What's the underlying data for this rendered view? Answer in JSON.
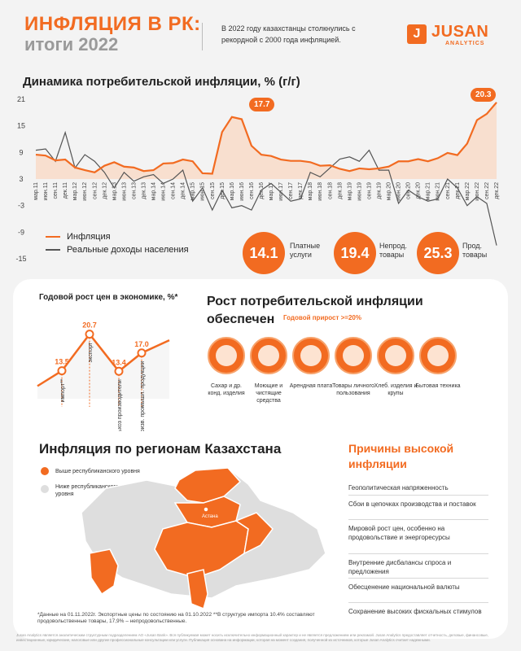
{
  "header": {
    "title_line1": "ИНФЛЯЦИЯ В РК:",
    "title_line2": "итоги 2022",
    "intro": "В 2022 году казахстанцы столкнулись с рекордной с 2000 года инфляцией.",
    "logo_text": "JUSAN",
    "logo_sub": "ANALYTICS",
    "logo_mark": "J"
  },
  "chart_data": {
    "type": "line",
    "title": "Динамика потребительской инфляции, % (г/г)",
    "yticks": [
      21,
      15,
      9,
      3,
      -3,
      -9,
      -15
    ],
    "ylim": [
      -15,
      21
    ],
    "xticks": [
      "мар.11",
      "июн.11",
      "сен.11",
      "дек.11",
      "мар.12",
      "июн.12",
      "сен.12",
      "дек.12",
      "мар.13",
      "июн.13",
      "сен.13",
      "дек.13",
      "мар.14",
      "июн.14",
      "сен.14",
      "дек.14",
      "мар.15",
      "июн.15",
      "сен.15",
      "дек.15",
      "мар.16",
      "июн.16",
      "сен.16",
      "дек.16",
      "мар.17",
      "июн.17",
      "сен.17",
      "дек.17",
      "мар.18",
      "июн.18",
      "сен.18",
      "дек.18",
      "мар.19",
      "июн.19",
      "сен.19",
      "дек.19",
      "мар.20",
      "июн.20",
      "сен.20",
      "дек.20",
      "мар.21",
      "июн.21",
      "сен.21",
      "дек.21",
      "мар.22",
      "июн.22",
      "сен.22",
      "дек.22"
    ],
    "series": [
      {
        "name": "Инфляция",
        "color": "#f26b21",
        "values": [
          8.5,
          8.3,
          7.2,
          7.4,
          5.6,
          5.0,
          4.5,
          6.0,
          6.8,
          5.8,
          5.6,
          4.8,
          5.0,
          6.5,
          6.6,
          7.4,
          7.0,
          4.3,
          4.2,
          13.6,
          17.0,
          16.5,
          10.5,
          8.5,
          8.2,
          7.4,
          7.1,
          7.1,
          6.8,
          6.0,
          6.1,
          5.3,
          4.8,
          5.4,
          5.2,
          5.4,
          5.8,
          7.0,
          7.0,
          7.5,
          7.0,
          7.7,
          8.9,
          8.4,
          11.0,
          16.3,
          17.7,
          20.3
        ]
      },
      {
        "name": "Реальные доходы населения",
        "color": "#555555",
        "values": [
          9.5,
          9.8,
          7.0,
          13.5,
          5.5,
          8.5,
          7.0,
          4.5,
          1.0,
          4.5,
          2.5,
          3.5,
          4.0,
          2.0,
          3.0,
          5.0,
          -2.0,
          1.0,
          -4.0,
          0.5,
          -3.5,
          -3.0,
          -4.0,
          0.5,
          2.0,
          0.0,
          -2.0,
          -1.5,
          4.5,
          3.5,
          5.5,
          7.5,
          8.0,
          7.0,
          9.5,
          5.0,
          5.0,
          -2.5,
          0.5,
          -1.0,
          -2.0,
          -1.5,
          3.0,
          1.0,
          -3.0,
          -1.0,
          -2.5,
          -12.0
        ]
      }
    ],
    "callouts": {
      "peak_2016": "17.7",
      "peak_2022": "20.3"
    }
  },
  "legend": {
    "inflation": "Инфляция",
    "income": "Реальные доходы населения"
  },
  "bubbles": [
    {
      "value": "14.1",
      "label": "Платные услуги"
    },
    {
      "value": "19.4",
      "label": "Непрод. товары"
    },
    {
      "value": "25.3",
      "label": "Прод. товары"
    }
  ],
  "growth": {
    "title": "Годовой рост цен в экономике, %*",
    "chart_data": {
      "type": "line",
      "categories": [
        "импорт**",
        "экспорт",
        "сельхоз производители",
        "произв. промышл. продукции"
      ],
      "values": [
        13.5,
        20.7,
        13.4,
        17.0
      ]
    }
  },
  "rise": {
    "title_line1": "Рост потребительской инфляции",
    "title_line2": "обеспечен",
    "note": "Годовой прирост >=20%",
    "categories": [
      {
        "label": "Сахар и др. конд. изделия",
        "icon": "sugar-icon"
      },
      {
        "label": "Моющие и чистящие средства",
        "icon": "detergent-icon"
      },
      {
        "label": "Арендная плата",
        "icon": "building-icon"
      },
      {
        "label": "Товары личного пользования",
        "icon": "hair-dryer-icon"
      },
      {
        "label": "Хлеб. изделия и крупы",
        "icon": "grain-icon"
      },
      {
        "label": "Бытовая техника",
        "icon": "appliance-icon"
      }
    ]
  },
  "regions": {
    "title": "Инфляция по регионам Казахстана",
    "above": "Выше республиканского уровня",
    "below": "Ниже республиканского уровня",
    "capital": "Астана",
    "above_color": "#f26b21",
    "below_color": "#dedede"
  },
  "reasons": {
    "title_line1": "Причины высокой",
    "title_line2": "инфляции",
    "items": [
      "Геополитическая напряженность",
      "Сбои в цепочках производства и поставок",
      "Мировой рост цен, особенно на продовольствие и энергоресурсы",
      "Внутренние дисбалансы спроса и предложения",
      "Обесценение национальной валюты",
      "Сохранение высоких фискальных стимулов"
    ]
  },
  "footnote": "*Данные на 01.11.2022г. Экспортные цены по состоянию на 01.10.2022 **В структуре импорта 10.4% составляют продовольственные товары, 17,9% – непродовольственные.",
  "disclaimer": "Jusan Analytics является аналитическим структурным подразделением АО «Jusan Bank». Вся публикуемая может носить исключительно информационный характер и не является предложением или рекламой. Jusan Analytics предоставляет отчетность, деловые, финансовые, инвестиционные, юридические, налоговые или другие профессиональные консультации или услуги. Публикация основана на информации, которая на момент создания, полученной из источников, которые Jusan Analytics считает надежными."
}
